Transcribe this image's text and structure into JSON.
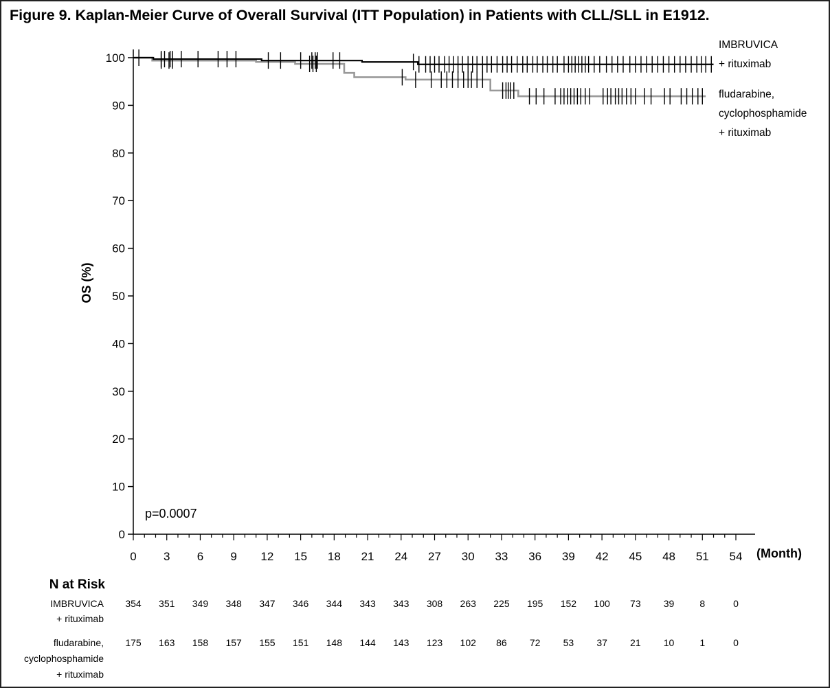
{
  "title": "Figure 9. Kaplan-Meier Curve of Overall Survival (ITT Population) in Patients with CLL/SLL in E1912.",
  "chart_data": {
    "type": "line",
    "subtype": "kaplan-meier",
    "xlabel": "(Month)",
    "ylabel": "OS (%)",
    "xlim": [
      0,
      54
    ],
    "ylim": [
      0,
      100
    ],
    "xticks": [
      "0",
      "3",
      "6",
      "9",
      "12",
      "15",
      "18",
      "21",
      "24",
      "27",
      "30",
      "33",
      "36",
      "39",
      "42",
      "45",
      "48",
      "51",
      "54"
    ],
    "yticks": [
      "0",
      "10",
      "20",
      "30",
      "40",
      "50",
      "60",
      "70",
      "80",
      "90",
      "100"
    ],
    "annotation": "p=0.0007",
    "series": [
      {
        "name_lines": [
          "IMBRUVICA",
          "+ rituximab"
        ],
        "color": "#000000",
        "steps": [
          [
            0,
            100
          ],
          [
            1.8,
            99.7
          ],
          [
            11.5,
            99.4
          ],
          [
            20.5,
            99.1
          ],
          [
            25.5,
            98.6
          ],
          [
            52,
            98.6
          ]
        ],
        "censor_times": [
          0.5,
          2.5,
          2.8,
          3.3,
          3.5,
          4.3,
          5.8,
          7.6,
          8.4,
          9.2,
          12.1,
          13.2,
          15,
          16,
          16.3,
          16.5,
          17.9,
          18.5,
          25.1,
          25.6,
          26.2,
          26.6,
          27,
          27.4,
          27.9,
          28.3,
          28.7,
          29.1,
          29.5,
          30,
          30.4,
          30.8,
          31.3,
          31.7,
          32.1,
          32.6,
          33.1,
          33.5,
          33.9,
          34.4,
          34.9,
          35.3,
          35.8,
          36.2,
          36.7,
          37.1,
          37.6,
          38,
          38.6,
          39,
          39.3,
          39.6,
          39.9,
          40.2,
          40.5,
          40.8,
          41.3,
          41.8,
          42.4,
          42.9,
          43.4,
          43.9,
          44.5,
          45,
          45.5,
          46,
          46.5,
          47,
          47.5,
          48,
          48.5,
          49,
          49.5,
          50,
          50.5,
          50.9,
          51.3,
          51.8
        ]
      },
      {
        "name_lines": [
          "fludarabine,",
          "cyclophosphamide",
          "+ rituximab"
        ],
        "color": "#999999",
        "steps": [
          [
            0,
            100
          ],
          [
            1.7,
            99.4
          ],
          [
            6.5,
            99.4
          ],
          [
            11,
            99.1
          ],
          [
            14.5,
            98.7
          ],
          [
            18.9,
            96.8
          ],
          [
            19.8,
            95.9
          ],
          [
            24,
            95.9
          ],
          [
            24.4,
            95.4
          ],
          [
            31.5,
            95.4
          ],
          [
            32,
            93.1
          ],
          [
            34.5,
            91.9
          ],
          [
            51.3,
            91.9
          ]
        ],
        "censor_times": [
          2.5,
          3.2,
          3.5,
          15.8,
          16.1,
          16.4,
          24.1,
          25.3,
          26.7,
          27.6,
          28.1,
          28.6,
          29.1,
          29.6,
          30,
          30.3,
          30.8,
          31.3,
          33.1,
          33.4,
          33.6,
          33.8,
          34.1,
          35.5,
          36.1,
          36.8,
          37.8,
          38.3,
          38.6,
          38.9,
          39.2,
          39.5,
          39.8,
          40.1,
          40.5,
          40.9,
          42.1,
          42.5,
          42.8,
          43.2,
          43.5,
          43.8,
          44.2,
          44.6,
          45,
          45.8,
          46.4,
          47.6,
          48.1,
          49.1,
          49.6,
          50.1,
          50.6,
          51
        ]
      }
    ]
  },
  "n_at_risk": {
    "header": "N at Risk",
    "rows": [
      {
        "label_lines": [
          "IMBRUVICA",
          "+ rituximab"
        ],
        "values": [
          "354",
          "351",
          "349",
          "348",
          "347",
          "346",
          "344",
          "343",
          "343",
          "308",
          "263",
          "225",
          "195",
          "152",
          "100",
          "73",
          "39",
          "8",
          "0"
        ]
      },
      {
        "label_lines": [
          "fludarabine,",
          "cyclophosphamide",
          "+ rituximab"
        ],
        "values": [
          "175",
          "163",
          "158",
          "157",
          "155",
          "151",
          "148",
          "144",
          "143",
          "123",
          "102",
          "86",
          "72",
          "53",
          "37",
          "21",
          "10",
          "1",
          "0"
        ]
      }
    ]
  }
}
